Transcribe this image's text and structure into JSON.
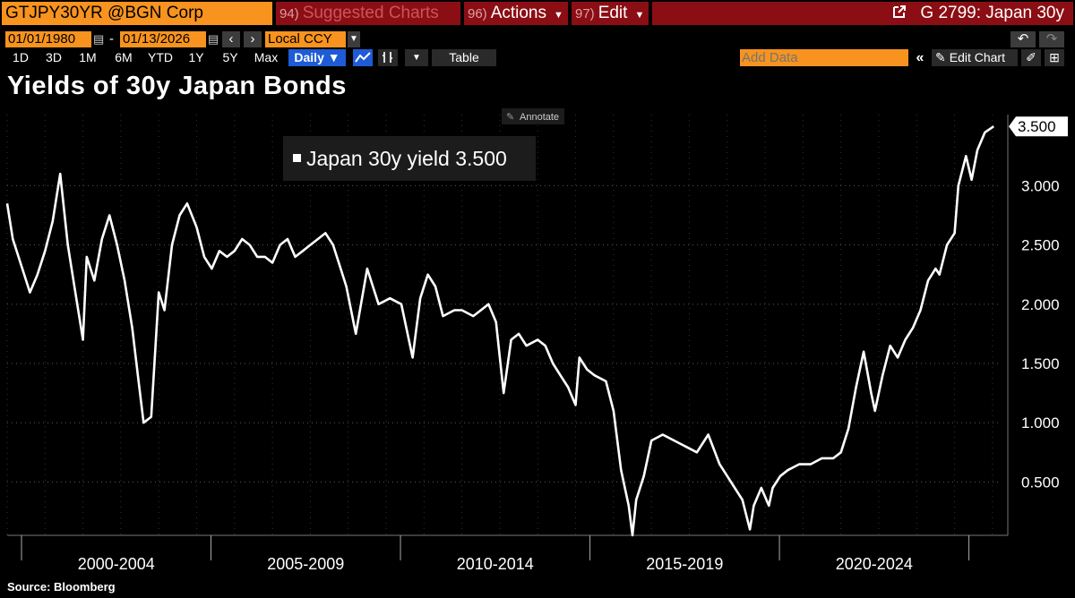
{
  "topbar": {
    "ticker": "GTJPY30YR @BGN Corp",
    "suggested_num": "94)",
    "suggested_label": "Suggested Charts",
    "actions_num": "96)",
    "actions_label": "Actions",
    "edit_num": "97)",
    "edit_label": "Edit",
    "graph_title": "G 2799: Japan 30y"
  },
  "controls": {
    "start_date": "01/01/1980",
    "end_date": "01/13/2026",
    "date_sep": "-",
    "currency": "Local CCY",
    "periods": [
      "1D",
      "3D",
      "1M",
      "6M",
      "YTD",
      "1Y",
      "5Y",
      "Max"
    ],
    "frequency": "Daily",
    "table_label": "Table",
    "add_data_placeholder": "Add Data",
    "edit_chart_label": "Edit Chart"
  },
  "chart_title": "Yields of 30y Japan Bonds",
  "source": "Source: Bloomberg",
  "annotate_label": "Annotate",
  "colors": {
    "ticker_bg": "#f7931e",
    "header_red": "#8b0e14",
    "series": "#ffffff",
    "background": "#000000"
  },
  "chart_data": {
    "type": "line",
    "legend": "Japan 30y yield 3.500",
    "legend_placement": "top-left",
    "last_value_label": "3.500",
    "x_period_labels": [
      "2000-2004",
      "2005-2009",
      "2010-2014",
      "2015-2019",
      "2020-2024"
    ],
    "y_ticks": [
      "0.500",
      "1.000",
      "1.500",
      "2.000",
      "2.500",
      "3.000"
    ],
    "ylim": [
      0.05,
      3.6
    ],
    "grid": true,
    "series": [
      {
        "x": [
          2000.0,
          2000.15,
          2000.35,
          2000.6,
          2000.8,
          2001.0,
          2001.2,
          2001.4,
          2001.6,
          2001.8,
          2002.0,
          2002.1,
          2002.3,
          2002.5,
          2002.7,
          2002.9,
          2003.1,
          2003.3,
          2003.45,
          2003.6,
          2003.8,
          2004.0,
          2004.15,
          2004.35,
          2004.55,
          2004.75,
          2005.0,
          2005.2,
          2005.4,
          2005.6,
          2005.8,
          2006.0,
          2006.2,
          2006.4,
          2006.6,
          2006.8,
          2007.0,
          2007.2,
          2007.4,
          2007.6,
          2007.8,
          2008.0,
          2008.2,
          2008.4,
          2008.6,
          2008.8,
          2008.95,
          2009.2,
          2009.5,
          2009.8,
          2010.1,
          2010.4,
          2010.7,
          2010.9,
          2011.1,
          2011.3,
          2011.5,
          2011.8,
          2012.0,
          2012.3,
          2012.5,
          2012.7,
          2012.9,
          2013.1,
          2013.3,
          2013.5,
          2013.7,
          2014.0,
          2014.2,
          2014.4,
          2014.6,
          2014.8,
          2015.0,
          2015.1,
          2015.3,
          2015.5,
          2015.8,
          2016.0,
          2016.2,
          2016.4,
          2016.5,
          2016.6,
          2016.8,
          2017.0,
          2017.3,
          2017.6,
          2017.9,
          2018.2,
          2018.5,
          2018.8,
          2019.0,
          2019.2,
          2019.4,
          2019.6,
          2019.7,
          2019.9,
          2020.1,
          2020.2,
          2020.4,
          2020.6,
          2020.9,
          2021.2,
          2021.5,
          2021.8,
          2022.0,
          2022.2,
          2022.4,
          2022.6,
          2022.8,
          2022.9,
          2023.1,
          2023.3,
          2023.5,
          2023.7,
          2023.9,
          2024.1,
          2024.3,
          2024.5,
          2024.6,
          2024.8,
          2025.0,
          2025.1,
          2025.3,
          2025.45,
          2025.6,
          2025.8,
          2026.03
        ],
        "y": [
          2.85,
          2.55,
          2.35,
          2.1,
          2.25,
          2.45,
          2.7,
          3.1,
          2.5,
          2.1,
          1.7,
          2.4,
          2.2,
          2.55,
          2.75,
          2.5,
          2.2,
          1.8,
          1.4,
          1.0,
          1.05,
          2.1,
          1.95,
          2.5,
          2.75,
          2.85,
          2.65,
          2.4,
          2.3,
          2.45,
          2.4,
          2.45,
          2.55,
          2.5,
          2.4,
          2.4,
          2.35,
          2.5,
          2.55,
          2.4,
          2.45,
          2.5,
          2.55,
          2.6,
          2.5,
          2.3,
          2.15,
          1.75,
          2.3,
          2.0,
          2.05,
          2.0,
          1.55,
          2.05,
          2.25,
          2.15,
          1.9,
          1.95,
          1.95,
          1.9,
          1.95,
          2.0,
          1.85,
          1.25,
          1.7,
          1.75,
          1.65,
          1.7,
          1.65,
          1.5,
          1.4,
          1.3,
          1.15,
          1.55,
          1.45,
          1.4,
          1.35,
          1.1,
          0.6,
          0.3,
          0.05,
          0.35,
          0.55,
          0.85,
          0.9,
          0.85,
          0.8,
          0.75,
          0.9,
          0.65,
          0.55,
          0.45,
          0.35,
          0.1,
          0.3,
          0.45,
          0.3,
          0.45,
          0.55,
          0.6,
          0.65,
          0.65,
          0.7,
          0.7,
          0.75,
          0.95,
          1.3,
          1.6,
          1.25,
          1.1,
          1.4,
          1.65,
          1.55,
          1.7,
          1.8,
          1.95,
          2.2,
          2.3,
          2.25,
          2.5,
          2.6,
          3.0,
          3.25,
          3.05,
          3.3,
          3.45,
          3.5
        ]
      }
    ]
  }
}
